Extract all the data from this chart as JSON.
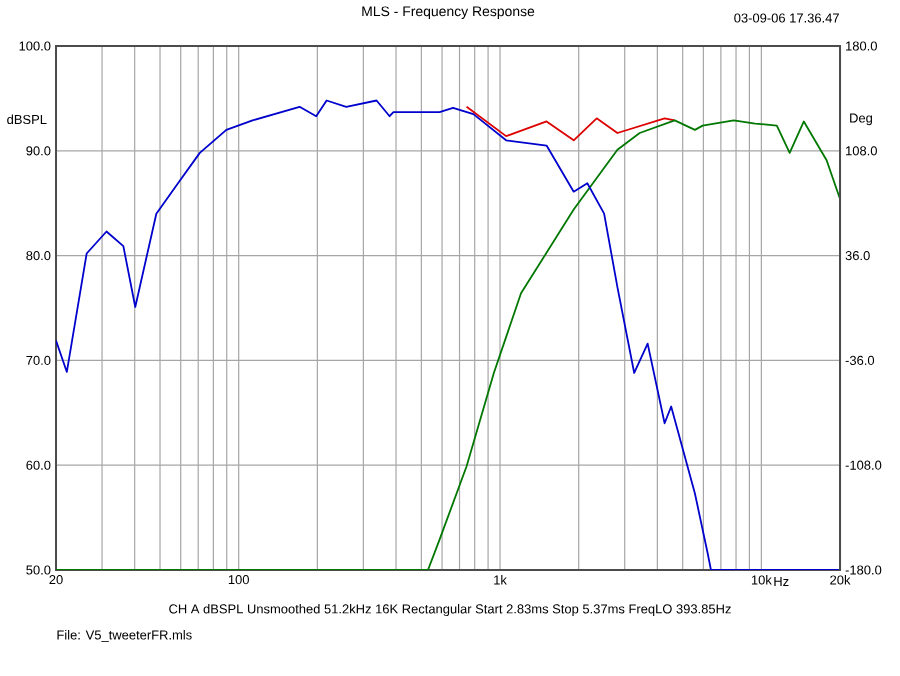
{
  "chart_data": {
    "type": "line",
    "title": "MLS - Frequency Response",
    "annotations": [
      "03-09-06 17.36.47",
      "CH A   dBSPL   Unsmoothed   51.2kHz   16K   Rectangular   Start 2.83ms   Stop 5.37ms   FreqLO 393.85Hz",
      "File: V5_tweeterFR.mls"
    ],
    "xlabel": "Hz",
    "ylabel": "dBSPL",
    "y2label": "Deg",
    "log": "x",
    "grid": true,
    "xlim": [
      20,
      20000
    ],
    "ylim": [
      50,
      100
    ],
    "y2lim": [
      -180,
      180
    ],
    "xticks": [
      {
        "value": 20,
        "label": "20"
      },
      {
        "value": 30,
        "label": null
      },
      {
        "value": 40,
        "label": null
      },
      {
        "value": 50,
        "label": null
      },
      {
        "value": 60,
        "label": null
      },
      {
        "value": 70,
        "label": null
      },
      {
        "value": 80,
        "label": null
      },
      {
        "value": 90,
        "label": null
      },
      {
        "value": 100,
        "label": "100"
      },
      {
        "value": 200,
        "label": null
      },
      {
        "value": 300,
        "label": null
      },
      {
        "value": 400,
        "label": null
      },
      {
        "value": 500,
        "label": null
      },
      {
        "value": 600,
        "label": null
      },
      {
        "value": 700,
        "label": null
      },
      {
        "value": 800,
        "label": null
      },
      {
        "value": 900,
        "label": null
      },
      {
        "value": 1000,
        "label": "1k"
      },
      {
        "value": 2000,
        "label": null
      },
      {
        "value": 3000,
        "label": null
      },
      {
        "value": 4000,
        "label": null
      },
      {
        "value": 5000,
        "label": null
      },
      {
        "value": 6000,
        "label": null
      },
      {
        "value": 7000,
        "label": null
      },
      {
        "value": 8000,
        "label": null
      },
      {
        "value": 9000,
        "label": null
      },
      {
        "value": 10000,
        "label": "10k"
      },
      {
        "value": 20000,
        "label": "20k"
      }
    ],
    "yticks": [
      {
        "value": 50,
        "label": "50.0"
      },
      {
        "value": 60,
        "label": "60.0"
      },
      {
        "value": 70,
        "label": "70.0"
      },
      {
        "value": 80,
        "label": "80.0"
      },
      {
        "value": 90,
        "label": "90.0"
      },
      {
        "value": 100,
        "label": "100.0"
      }
    ],
    "y2ticks": [
      {
        "value": -180,
        "label": "-180.0"
      },
      {
        "value": -108,
        "label": "-108.0"
      },
      {
        "value": -36,
        "label": "-36.0"
      },
      {
        "value": 36,
        "label": "36.0"
      },
      {
        "value": 108,
        "label": "108.0"
      },
      {
        "value": 180,
        "label": "180.0"
      }
    ],
    "series": [
      {
        "color": "#dd0000",
        "x": [
          745,
          1055,
          1507,
          1914,
          2343,
          2813,
          4264,
          4661
        ],
        "values": [
          94.2,
          91.4,
          92.8,
          91.0,
          93.1,
          91.7,
          93.1,
          92.9
        ]
      },
      {
        "color": "#007700",
        "x": [
          20,
          530,
          587,
          745,
          947,
          1203,
          1914,
          2813,
          3422,
          4661,
          5569,
          5959,
          7840,
          9470,
          11460,
          12832,
          14540,
          17770,
          20000
        ],
        "values": [
          50,
          50,
          52.9,
          59.9,
          68.8,
          76.4,
          84.4,
          90.1,
          91.7,
          92.9,
          92.0,
          92.4,
          92.9,
          92.6,
          92.4,
          89.8,
          92.8,
          89.1,
          85.4
        ]
      },
      {
        "color": "#0000cc",
        "x": [
          20,
          22,
          26.2,
          31.2,
          36.2,
          40.2,
          48.4,
          59.7,
          71,
          89.7,
          113,
          171,
          198,
          217,
          258,
          337,
          378,
          391,
          587,
          661,
          791,
          1055,
          1507,
          1914,
          2158,
          2502,
          2813,
          3262,
          3672,
          4264,
          4517,
          5569,
          6230,
          6414,
          20000
        ],
        "values": [
          71.9,
          68.9,
          80.2,
          82.3,
          80.9,
          75.1,
          84.0,
          87.2,
          89.8,
          92.0,
          92.9,
          94.2,
          93.3,
          94.8,
          94.2,
          94.8,
          93.3,
          93.7,
          93.7,
          94.1,
          93.5,
          91.0,
          90.5,
          86.1,
          86.9,
          84.0,
          77.0,
          68.8,
          71.6,
          64.0,
          65.6,
          57.3,
          51.6,
          50,
          50
        ]
      }
    ]
  }
}
